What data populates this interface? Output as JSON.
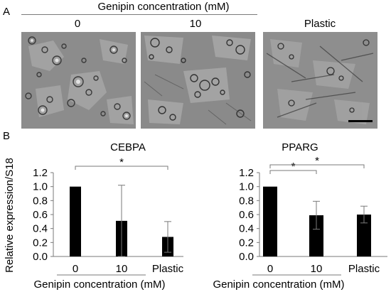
{
  "figure": {
    "panel_a_label": "A",
    "panel_b_label": "B",
    "top_axis_label": "Genipin concentration (mM)",
    "image_columns": [
      "0",
      "10",
      "Plastic"
    ],
    "scale_bar_color": "#000000"
  },
  "chart_data": [
    {
      "type": "bar",
      "title": "CEBPA",
      "categories": [
        "0",
        "10",
        "Plastic"
      ],
      "values": [
        1.0,
        0.51,
        0.28
      ],
      "error": [
        0.0,
        0.51,
        0.22
      ],
      "ylabel": "Relative expression/S18",
      "xgroup_label": "Genipin concentration (mM)",
      "ylim": [
        0.0,
        1.2
      ],
      "yticks": [
        "0.0",
        "0.2",
        "0.4",
        "0.6",
        "0.8",
        "1.0",
        "1.2"
      ],
      "significance": [
        {
          "from": 0,
          "to": 2,
          "label": "*"
        }
      ],
      "bar_color": "#000000",
      "grid": false
    },
    {
      "type": "bar",
      "title": "PPARG",
      "categories": [
        "0",
        "10",
        "Plastic"
      ],
      "values": [
        1.0,
        0.59,
        0.6
      ],
      "error": [
        0.0,
        0.2,
        0.12
      ],
      "ylabel": "Relative expression/S18",
      "xgroup_label": "Genipin concentration (mM)",
      "ylim": [
        0.0,
        1.2
      ],
      "yticks": [
        "0.0",
        "0.2",
        "0.4",
        "0.6",
        "0.8",
        "1.0",
        "1.2"
      ],
      "significance": [
        {
          "from": 0,
          "to": 1,
          "label": "*"
        },
        {
          "from": 0,
          "to": 2,
          "label": "*"
        }
      ],
      "bar_color": "#000000",
      "grid": false
    }
  ]
}
